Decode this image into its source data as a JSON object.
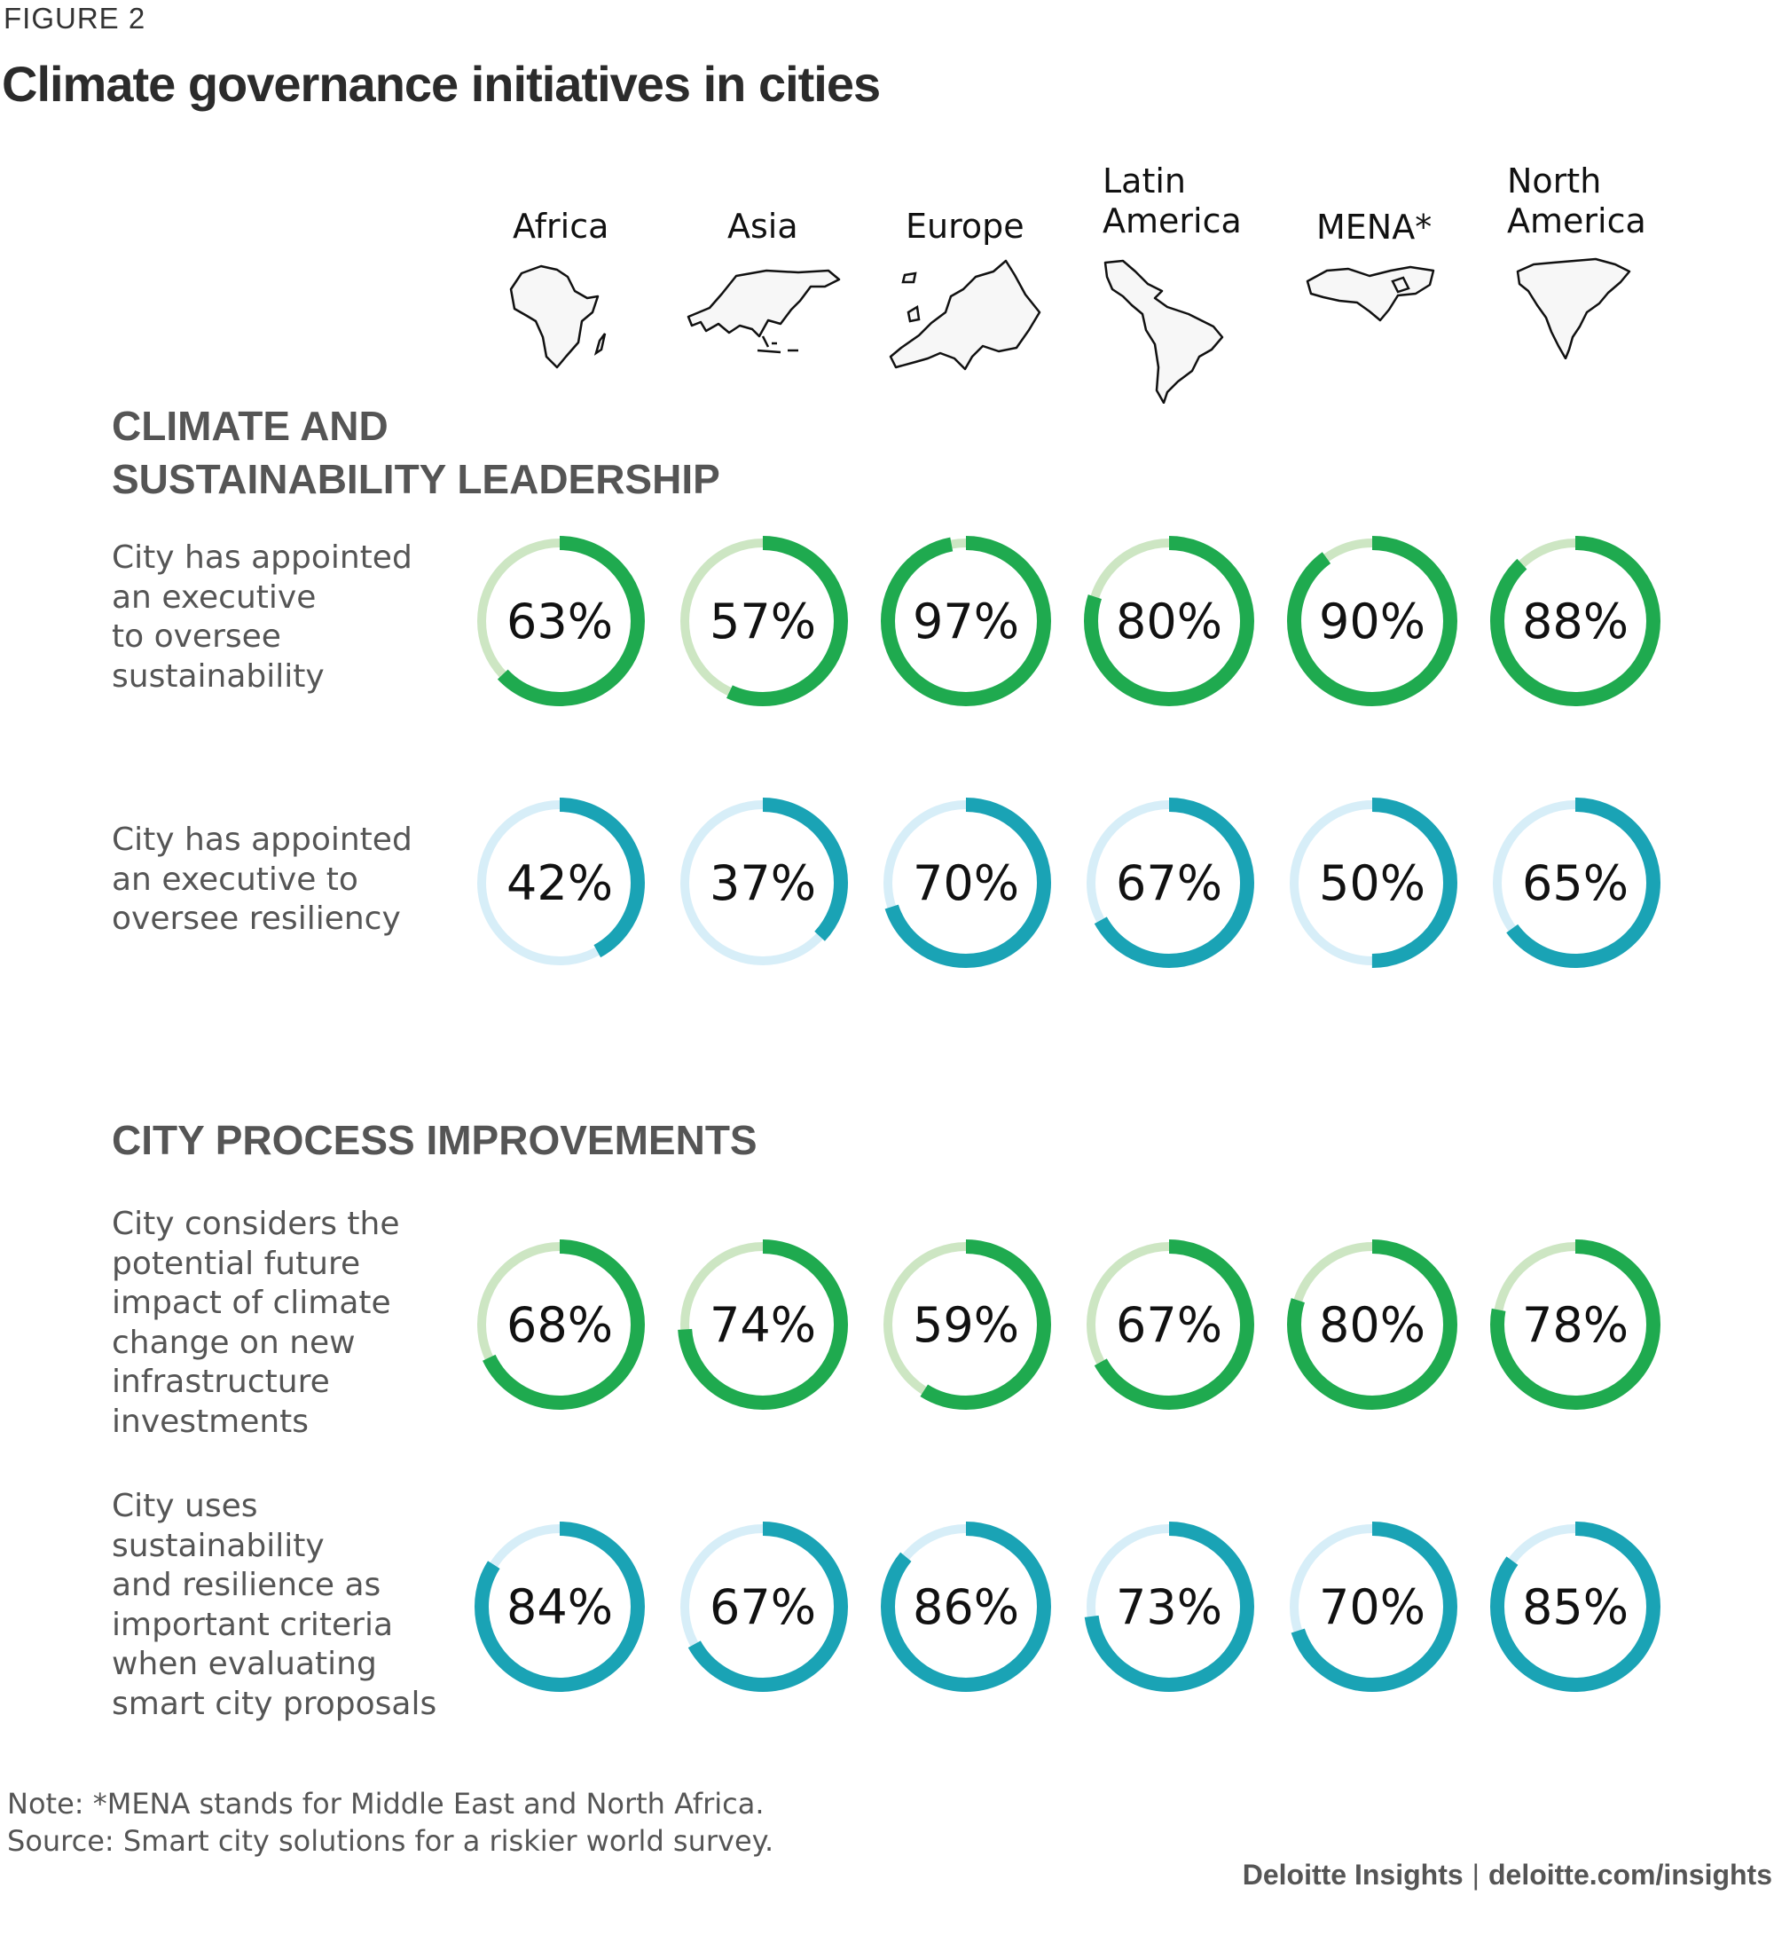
{
  "figure_label": "FIGURE 2",
  "title": "Climate governance initiatives in cities",
  "regions": [
    {
      "name": "Africa",
      "lines": [
        "Africa"
      ]
    },
    {
      "name": "Asia",
      "lines": [
        "Asia"
      ]
    },
    {
      "name": "Europe",
      "lines": [
        "Europe"
      ]
    },
    {
      "name": "Latin America",
      "lines": [
        "Latin",
        "America"
      ]
    },
    {
      "name": "MENA*",
      "lines": [
        "MENA*"
      ]
    },
    {
      "name": "North America",
      "lines": [
        "North",
        "America"
      ]
    }
  ],
  "sections": [
    {
      "title_lines": [
        "CLIMATE AND",
        "SUSTAINABILITY LEADERSHIP"
      ]
    },
    {
      "title_lines": [
        "CITY PROCESS IMPROVEMENTS"
      ]
    }
  ],
  "row_labels": [
    [
      "City has appointed",
      "an executive",
      "to oversee",
      "sustainability"
    ],
    [
      "City has appointed",
      "an executive to",
      "oversee resiliency"
    ],
    [
      "City considers the",
      "potential future",
      "impact of climate",
      "change on new",
      "infrastructure",
      "investments"
    ],
    [
      "City uses",
      "sustainability",
      "and resilience as",
      "important criteria",
      "when evaluating",
      "smart city proposals"
    ]
  ],
  "chart_data": {
    "type": "donut-grid",
    "title": "Climate governance initiatives in cities",
    "categories": [
      "Africa",
      "Asia",
      "Europe",
      "Latin America",
      "MENA*",
      "North America"
    ],
    "unit": "%",
    "series": [
      {
        "name": "City has appointed an executive to oversee sustainability",
        "section": "CLIMATE AND SUSTAINABILITY LEADERSHIP",
        "values": [
          63,
          57,
          97,
          80,
          90,
          88
        ],
        "color": "#1faa4f",
        "track_color": "#cde6c3"
      },
      {
        "name": "City has appointed an executive to oversee resiliency",
        "section": "CLIMATE AND SUSTAINABILITY LEADERSHIP",
        "values": [
          42,
          37,
          70,
          67,
          50,
          65
        ],
        "color": "#1aa3b5",
        "track_color": "#d7eef8"
      },
      {
        "name": "City considers the potential future impact of climate change on new infrastructure investments",
        "section": "CITY PROCESS IMPROVEMENTS",
        "values": [
          68,
          74,
          59,
          67,
          80,
          78
        ],
        "color": "#1faa4f",
        "track_color": "#cde6c3"
      },
      {
        "name": "City uses sustainability and resilience as important criteria when evaluating smart city proposals",
        "section": "CITY PROCESS IMPROVEMENTS",
        "values": [
          84,
          67,
          86,
          73,
          70,
          85
        ],
        "color": "#1aa3b5",
        "track_color": "#d7eef8"
      }
    ]
  },
  "notes": [
    "Note: *MENA stands for Middle East and North Africa.",
    "Source: Smart city solutions for a riskier world survey."
  ],
  "credit": {
    "brand": "Deloitte Insights",
    "separator": "|",
    "url": "deloitte.com/insights"
  }
}
